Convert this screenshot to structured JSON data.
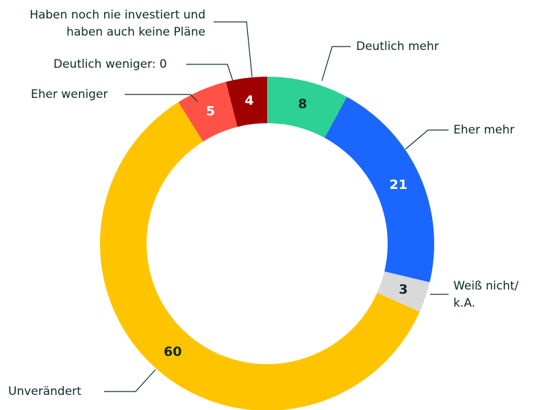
{
  "chart_data": {
    "type": "donut",
    "categories": [
      "Deutlich mehr",
      "Eher mehr",
      "Weiß nicht/\nk.A.",
      "Unverändert",
      "Eher weniger",
      "Deutlich weniger: 0",
      "Haben noch nie investiert und\nhaben auch keine Pläne"
    ],
    "values": [
      8,
      21,
      3,
      60,
      5,
      0,
      4
    ],
    "colors": [
      "#2dd195",
      "#1a66ff",
      "#d9d9d9",
      "#ffc400",
      "#ff5246",
      "#c00000",
      "#a00000"
    ]
  }
}
